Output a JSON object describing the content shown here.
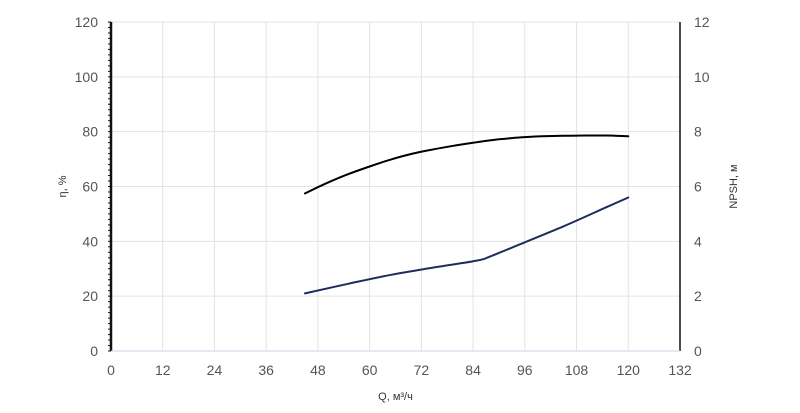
{
  "chart_data": {
    "type": "line",
    "xlabel": "Q, м³/ч",
    "ylabel_left": "η, %",
    "ylabel_right": "NPSH, м",
    "x_ticks": [
      "0",
      "12",
      "24",
      "36",
      "48",
      "60",
      "72",
      "84",
      "96",
      "108",
      "120",
      "132"
    ],
    "y_left_ticks": [
      "0",
      "20",
      "40",
      "60",
      "80",
      "100",
      "120"
    ],
    "y_right_ticks": [
      "0",
      "2",
      "4",
      "6",
      "8",
      "10",
      "12"
    ],
    "xlim": [
      0,
      132
    ],
    "ylim_left": [
      0,
      120
    ],
    "ylim_right": [
      0,
      12
    ],
    "grid": true,
    "series": [
      {
        "axis": "left",
        "color": "#000000",
        "x": [
          45,
          50,
          55,
          60,
          65,
          70,
          75,
          80,
          85,
          90,
          95,
          100,
          105,
          110,
          115,
          120
        ],
        "values": [
          57.5,
          61.2,
          64.5,
          67.3,
          69.9,
          72.0,
          73.6,
          75.0,
          76.2,
          77.2,
          77.9,
          78.3,
          78.5,
          78.6,
          78.6,
          78.3
        ]
      },
      {
        "axis": "right",
        "color": "#1f2d5c",
        "x": [
          45,
          55,
          65,
          75,
          85,
          88,
          95,
          105,
          115,
          120
        ],
        "values": [
          2.1,
          2.45,
          2.78,
          3.05,
          3.3,
          3.45,
          3.9,
          4.55,
          5.25,
          5.6
        ]
      }
    ]
  }
}
